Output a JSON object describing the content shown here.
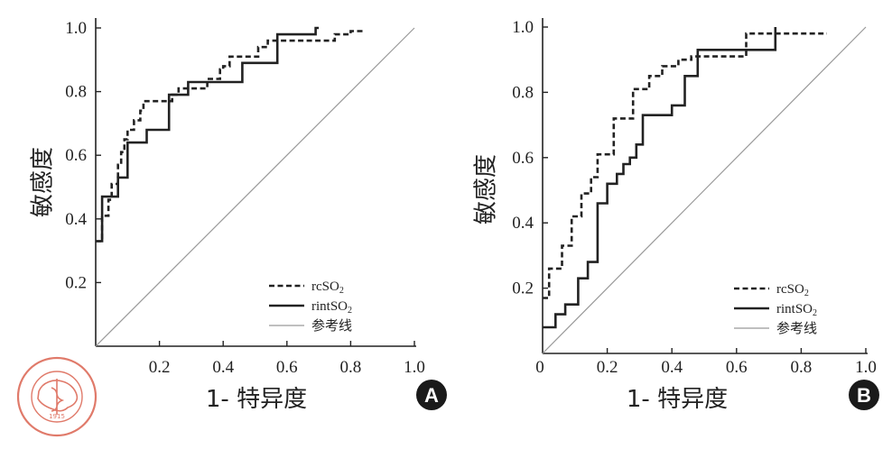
{
  "chart_data": [
    {
      "panel": "A",
      "type": "line",
      "title": "",
      "xlabel": "1- 特异度",
      "ylabel": "敏感度",
      "xlim": [
        0,
        1.0
      ],
      "ylim": [
        0,
        1.0
      ],
      "x_ticks": [
        "0.2",
        "0.4",
        "0.6",
        "0.8",
        "1.0"
      ],
      "y_ticks": [
        "0.2",
        "0.4",
        "0.6",
        "0.8",
        "1.0"
      ],
      "origin_label": "",
      "grid": false,
      "legend_position": "bottom-right",
      "series": [
        {
          "name": "rcSO₂",
          "legend_main": "rcSO",
          "legend_sub": "2",
          "style": "dashed",
          "color": "#222222",
          "points": [
            [
              0,
              0.33
            ],
            [
              0.02,
              0.33
            ],
            [
              0.02,
              0.41
            ],
            [
              0.04,
              0.41
            ],
            [
              0.04,
              0.46
            ],
            [
              0.05,
              0.46
            ],
            [
              0.05,
              0.51
            ],
            [
              0.07,
              0.51
            ],
            [
              0.07,
              0.57
            ],
            [
              0.08,
              0.57
            ],
            [
              0.08,
              0.61
            ],
            [
              0.09,
              0.61
            ],
            [
              0.09,
              0.65
            ],
            [
              0.1,
              0.65
            ],
            [
              0.1,
              0.68
            ],
            [
              0.12,
              0.68
            ],
            [
              0.12,
              0.71
            ],
            [
              0.14,
              0.71
            ],
            [
              0.14,
              0.74
            ],
            [
              0.15,
              0.74
            ],
            [
              0.15,
              0.77
            ],
            [
              0.24,
              0.77
            ],
            [
              0.24,
              0.79
            ],
            [
              0.26,
              0.79
            ],
            [
              0.26,
              0.81
            ],
            [
              0.35,
              0.81
            ],
            [
              0.35,
              0.84
            ],
            [
              0.39,
              0.84
            ],
            [
              0.39,
              0.87
            ],
            [
              0.4,
              0.87
            ],
            [
              0.4,
              0.88
            ],
            [
              0.42,
              0.88
            ],
            [
              0.42,
              0.91
            ],
            [
              0.51,
              0.91
            ],
            [
              0.51,
              0.94
            ],
            [
              0.54,
              0.94
            ],
            [
              0.54,
              0.96
            ],
            [
              0.75,
              0.96
            ],
            [
              0.75,
              0.98
            ],
            [
              0.8,
              0.98
            ],
            [
              0.8,
              0.99
            ],
            [
              0.84,
              0.99
            ]
          ]
        },
        {
          "name": "rintSO₂",
          "legend_main": "rintSO",
          "legend_sub": "2",
          "style": "solid",
          "color": "#222222",
          "points": [
            [
              0,
              0.33
            ],
            [
              0.02,
              0.33
            ],
            [
              0.02,
              0.47
            ],
            [
              0.07,
              0.47
            ],
            [
              0.07,
              0.53
            ],
            [
              0.1,
              0.53
            ],
            [
              0.1,
              0.64
            ],
            [
              0.16,
              0.64
            ],
            [
              0.16,
              0.68
            ],
            [
              0.23,
              0.68
            ],
            [
              0.23,
              0.79
            ],
            [
              0.29,
              0.79
            ],
            [
              0.29,
              0.83
            ],
            [
              0.4,
              0.83
            ],
            [
              0.4,
              0.83
            ],
            [
              0.46,
              0.83
            ],
            [
              0.46,
              0.89
            ],
            [
              0.57,
              0.89
            ],
            [
              0.57,
              0.98
            ],
            [
              0.69,
              0.98
            ],
            [
              0.69,
              1.0
            ],
            [
              0.7,
              1.0
            ]
          ]
        },
        {
          "name": "参考线",
          "legend_main": "参考线",
          "legend_sub": "",
          "style": "reference",
          "color": "#999999",
          "points": [
            [
              0,
              0
            ],
            [
              1,
              1
            ]
          ]
        }
      ]
    },
    {
      "panel": "B",
      "type": "line",
      "title": "",
      "xlabel": "1- 特异度",
      "ylabel": "敏感度",
      "xlim": [
        0,
        1.0
      ],
      "ylim": [
        0,
        1.0
      ],
      "x_ticks": [
        "0.2",
        "0.4",
        "0.6",
        "0.8",
        "1.0"
      ],
      "y_ticks": [
        "0.2",
        "0.4",
        "0.6",
        "0.8",
        "1.0"
      ],
      "origin_label": "0",
      "grid": false,
      "legend_position": "bottom-right",
      "series": [
        {
          "name": "rcSO₂",
          "legend_main": "rcSO",
          "legend_sub": "2",
          "style": "dashed",
          "color": "#222222",
          "points": [
            [
              0,
              0.17
            ],
            [
              0.02,
              0.17
            ],
            [
              0.02,
              0.26
            ],
            [
              0.06,
              0.26
            ],
            [
              0.06,
              0.33
            ],
            [
              0.09,
              0.33
            ],
            [
              0.09,
              0.42
            ],
            [
              0.12,
              0.42
            ],
            [
              0.12,
              0.49
            ],
            [
              0.15,
              0.49
            ],
            [
              0.15,
              0.54
            ],
            [
              0.17,
              0.54
            ],
            [
              0.17,
              0.61
            ],
            [
              0.22,
              0.61
            ],
            [
              0.22,
              0.72
            ],
            [
              0.28,
              0.72
            ],
            [
              0.28,
              0.81
            ],
            [
              0.33,
              0.81
            ],
            [
              0.33,
              0.85
            ],
            [
              0.37,
              0.85
            ],
            [
              0.37,
              0.88
            ],
            [
              0.42,
              0.88
            ],
            [
              0.42,
              0.9
            ],
            [
              0.46,
              0.9
            ],
            [
              0.46,
              0.91
            ],
            [
              0.63,
              0.91
            ],
            [
              0.63,
              0.98
            ],
            [
              0.88,
              0.98
            ]
          ]
        },
        {
          "name": "rintSO₂",
          "legend_main": "rintSO",
          "legend_sub": "2",
          "style": "solid",
          "color": "#222222",
          "points": [
            [
              0,
              0.08
            ],
            [
              0.04,
              0.08
            ],
            [
              0.04,
              0.12
            ],
            [
              0.07,
              0.12
            ],
            [
              0.07,
              0.15
            ],
            [
              0.11,
              0.15
            ],
            [
              0.11,
              0.23
            ],
            [
              0.14,
              0.23
            ],
            [
              0.14,
              0.28
            ],
            [
              0.17,
              0.28
            ],
            [
              0.17,
              0.46
            ],
            [
              0.2,
              0.46
            ],
            [
              0.2,
              0.52
            ],
            [
              0.23,
              0.52
            ],
            [
              0.23,
              0.55
            ],
            [
              0.25,
              0.55
            ],
            [
              0.25,
              0.58
            ],
            [
              0.27,
              0.58
            ],
            [
              0.27,
              0.6
            ],
            [
              0.29,
              0.6
            ],
            [
              0.29,
              0.64
            ],
            [
              0.31,
              0.64
            ],
            [
              0.31,
              0.73
            ],
            [
              0.4,
              0.73
            ],
            [
              0.4,
              0.76
            ],
            [
              0.44,
              0.76
            ],
            [
              0.44,
              0.85
            ],
            [
              0.48,
              0.85
            ],
            [
              0.48,
              0.93
            ],
            [
              0.72,
              0.93
            ],
            [
              0.72,
              1.0
            ]
          ]
        },
        {
          "name": "参考线",
          "legend_main": "参考线",
          "legend_sub": "",
          "style": "reference",
          "color": "#999999",
          "points": [
            [
              0,
              0
            ],
            [
              1,
              1
            ]
          ]
        }
      ]
    }
  ],
  "logo": {
    "top_text": "中 华 医 学 会",
    "year_text": "1915",
    "ring_text": "CHINESE MEDICAL ASSOCIATION",
    "color": "#e07a6a"
  }
}
